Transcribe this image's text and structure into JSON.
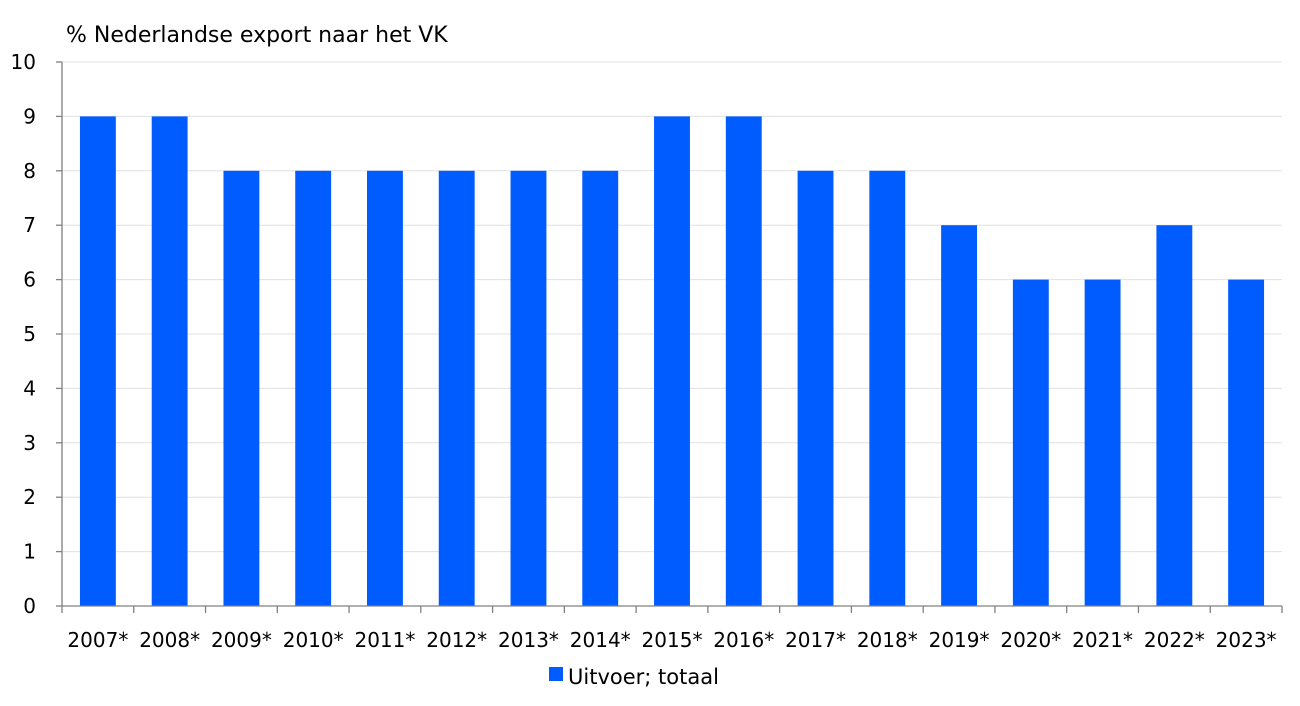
{
  "chart_data": {
    "type": "bar",
    "ylabel": "% Nederlandse export naar het VK",
    "categories": [
      "2007*",
      "2008*",
      "2009*",
      "2010*",
      "2011*",
      "2012*",
      "2013*",
      "2014*",
      "2015*",
      "2016*",
      "2017*",
      "2018*",
      "2019*",
      "2020*",
      "2021*",
      "2022*",
      "2023*"
    ],
    "series": [
      {
        "name": "Uitvoer; totaal",
        "values": [
          9,
          9,
          8,
          8,
          8,
          8,
          8,
          8,
          9,
          9,
          8,
          8,
          7,
          6,
          6,
          7,
          6
        ]
      }
    ],
    "ylim": [
      0,
      10
    ],
    "yticks": [
      0,
      1,
      2,
      3,
      4,
      5,
      6,
      7,
      8,
      9,
      10
    ],
    "grid": true,
    "legend_position": "bottom",
    "colors": {
      "bar": "#005cff",
      "grid": "#e0e0e0",
      "axis": "#808080"
    }
  }
}
